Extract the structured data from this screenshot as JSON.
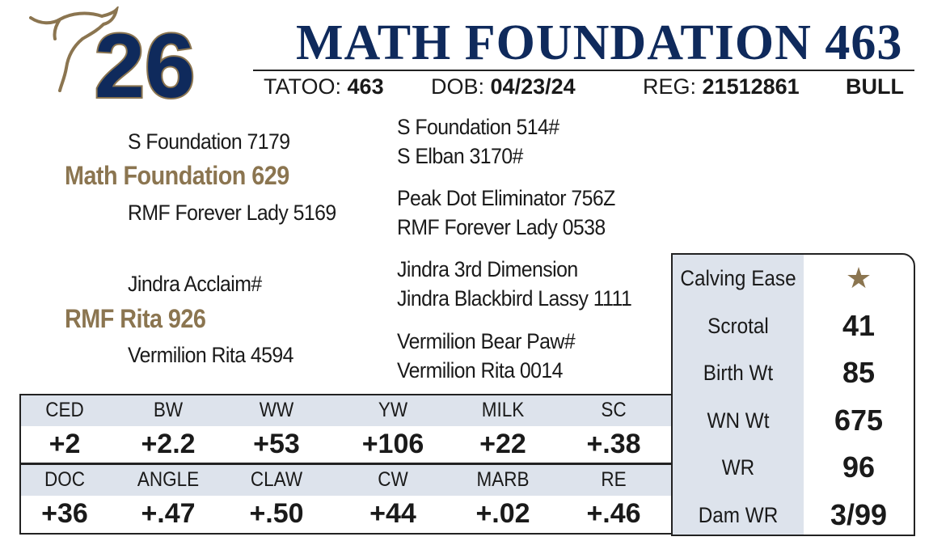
{
  "header": {
    "lot_number": "26",
    "name": "MATH FOUNDATION 463",
    "tattoo_label": "TATOO:",
    "tattoo": "463",
    "dob_label": "DOB:",
    "dob": "04/23/24",
    "reg_label": "REG:",
    "reg": "21512861",
    "sex": "BULL"
  },
  "pedigree": {
    "sire": "Math Foundation 629",
    "sire_sire": "S Foundation 7179",
    "sire_dam": "RMF Forever Lady 5169",
    "dam": "RMF Rita 926",
    "dam_sire": "Jindra Acclaim#",
    "dam_dam": "Vermilion Rita 4594",
    "ancestors": [
      "S Foundation 514#",
      "S Elban 3170#",
      "Peak Dot Eliminator 756Z",
      "RMF Forever Lady 0538",
      "Jindra 3rd Dimension",
      "Jindra Blackbird Lassy 1111",
      "Vermilion Bear Paw#",
      "Vermilion Rita 0014"
    ]
  },
  "epd_table": {
    "rows": [
      {
        "headers": [
          "CED",
          "BW",
          "WW",
          "YW",
          "MILK",
          "SC"
        ],
        "values": [
          "+2",
          "+2.2",
          "+53",
          "+106",
          "+22",
          "+.38"
        ]
      },
      {
        "headers": [
          "DOC",
          "ANGLE",
          "CLAW",
          "CW",
          "MARB",
          "RE"
        ],
        "values": [
          "+36",
          "+.47",
          "+.50",
          "+44",
          "+.02",
          "+.46"
        ]
      }
    ]
  },
  "stats": [
    {
      "label": "Calving Ease",
      "value": "★"
    },
    {
      "label": "Scrotal",
      "value": "41"
    },
    {
      "label": "Birth Wt",
      "value": "85"
    },
    {
      "label": "WN Wt",
      "value": "675"
    },
    {
      "label": "WR",
      "value": "96"
    },
    {
      "label": "Dam WR",
      "value": "3/99"
    }
  ]
}
